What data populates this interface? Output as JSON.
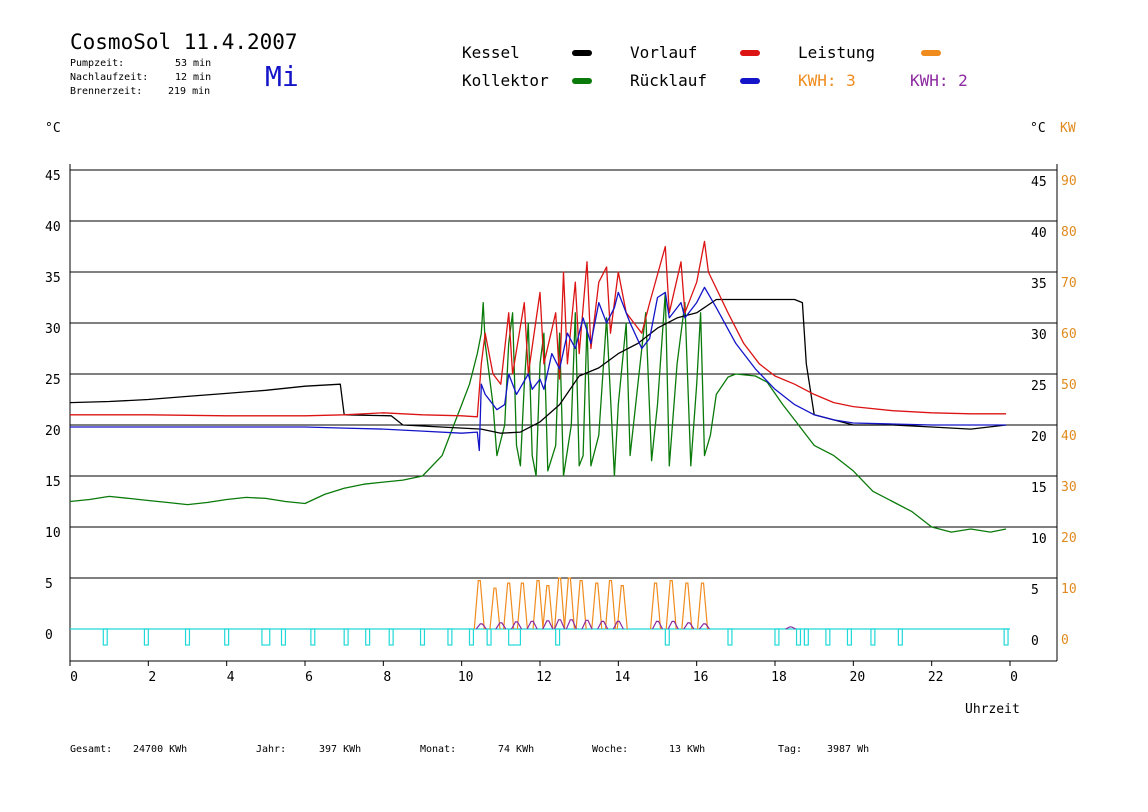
{
  "header": {
    "title": "CosmoSol 11.4.2007",
    "day": "Mi",
    "pumpzeit_label": "Pumpzeit:",
    "pumpzeit_value": "53 min",
    "nachlaufzeit_label": "Nachlaufzeit:",
    "nachlaufzeit_value": "12 min",
    "brennerzeit_label": "Brennerzeit:",
    "brennerzeit_value": "219 min"
  },
  "legend": {
    "kessel": "Kessel",
    "kollektor": "Kollektor",
    "vorlauf": "Vorlauf",
    "ruecklauf": "Rücklauf",
    "leistung": "Leistung",
    "kwh1": "KWH: 3",
    "kwh2": "KWH: 2"
  },
  "colors": {
    "kessel": "#000000",
    "kollektor": "#0a7a0a",
    "vorlauf": "#dc1414",
    "ruecklauf": "#1414c8",
    "leistung": "#f08c1e",
    "kwh2": "#8c2aa0",
    "pump": "#20d8d8",
    "orange_axis": "#e08a1e"
  },
  "axes": {
    "left_unit": "°C",
    "right_unit": "°C",
    "right_unit2": "KW",
    "xlabel": "Uhrzeit"
  },
  "footer": {
    "gesamt_label": "Gesamt:",
    "gesamt_value": "24700 KWh",
    "jahr_label": "Jahr:",
    "jahr_value": "397 KWh",
    "monat_label": "Monat:",
    "monat_value": "74 KWh",
    "woche_label": "Woche:",
    "woche_value": "13 KWh",
    "tag_label": "Tag:",
    "tag_value": "3987 Wh"
  },
  "chart_data": {
    "type": "line",
    "title": "CosmoSol 11.4.2007",
    "xlabel": "Uhrzeit",
    "ylabel": "°C",
    "xlim": [
      0,
      24
    ],
    "ylim": [
      0,
      45
    ],
    "y2lim": [
      0,
      90
    ],
    "grid": true,
    "legend_position": "top",
    "x_ticks": [
      "0",
      "2",
      "4",
      "6",
      "8",
      "10",
      "12",
      "14",
      "16",
      "18",
      "20",
      "22",
      "0"
    ],
    "y_ticks": [
      0,
      5,
      10,
      15,
      20,
      25,
      30,
      35,
      40,
      45
    ],
    "y2_ticks": [
      0,
      10,
      20,
      30,
      40,
      50,
      60,
      70,
      80,
      90
    ],
    "series": [
      {
        "name": "Kessel",
        "color": "#000000",
        "points": [
          [
            0,
            22.2
          ],
          [
            1,
            22.3
          ],
          [
            2,
            22.5
          ],
          [
            3,
            22.8
          ],
          [
            4,
            23.1
          ],
          [
            5,
            23.4
          ],
          [
            6,
            23.8
          ],
          [
            6.9,
            24.0
          ],
          [
            7.0,
            21.0
          ],
          [
            8.2,
            20.9
          ],
          [
            8.5,
            20.0
          ],
          [
            10.5,
            19.6
          ],
          [
            11.0,
            19.2
          ],
          [
            11.5,
            19.3
          ],
          [
            12.0,
            20.3
          ],
          [
            12.5,
            22.0
          ],
          [
            13.0,
            24.8
          ],
          [
            13.5,
            25.6
          ],
          [
            14.0,
            27.0
          ],
          [
            14.5,
            28.0
          ],
          [
            15.0,
            29.5
          ],
          [
            15.5,
            30.5
          ],
          [
            16.0,
            31.0
          ],
          [
            16.5,
            32.3
          ],
          [
            17.0,
            32.3
          ],
          [
            17.5,
            32.3
          ],
          [
            18.0,
            32.3
          ],
          [
            18.5,
            32.3
          ],
          [
            18.7,
            32.0
          ],
          [
            18.8,
            26.0
          ],
          [
            19.0,
            21.0
          ],
          [
            20,
            20.0
          ],
          [
            21,
            20.0
          ],
          [
            22,
            19.8
          ],
          [
            23,
            19.6
          ],
          [
            23.9,
            20.0
          ]
        ]
      },
      {
        "name": "Kollektor",
        "color": "#0a7a0a",
        "points": [
          [
            0,
            12.5
          ],
          [
            0.5,
            12.7
          ],
          [
            1,
            13.0
          ],
          [
            1.5,
            12.8
          ],
          [
            2,
            12.6
          ],
          [
            2.5,
            12.4
          ],
          [
            3,
            12.2
          ],
          [
            3.5,
            12.4
          ],
          [
            4,
            12.7
          ],
          [
            4.5,
            12.9
          ],
          [
            5,
            12.8
          ],
          [
            5.5,
            12.5
          ],
          [
            6,
            12.3
          ],
          [
            6.5,
            13.2
          ],
          [
            7,
            13.8
          ],
          [
            7.5,
            14.2
          ],
          [
            8,
            14.4
          ],
          [
            8.5,
            14.6
          ],
          [
            9,
            15.0
          ],
          [
            9.5,
            17.0
          ],
          [
            9.8,
            20.0
          ],
          [
            10,
            22.0
          ],
          [
            10.2,
            24.0
          ],
          [
            10.4,
            27.0
          ],
          [
            10.5,
            29.0
          ],
          [
            10.55,
            32.0
          ],
          [
            10.6,
            28.0
          ],
          [
            10.8,
            22.0
          ],
          [
            10.9,
            17.0
          ],
          [
            11.1,
            20.0
          ],
          [
            11.2,
            28.0
          ],
          [
            11.3,
            31.0
          ],
          [
            11.4,
            18.0
          ],
          [
            11.5,
            16.0
          ],
          [
            11.6,
            24.0
          ],
          [
            11.7,
            30.0
          ],
          [
            11.8,
            17.0
          ],
          [
            11.9,
            15.0
          ],
          [
            12.0,
            26.0
          ],
          [
            12.1,
            29.0
          ],
          [
            12.2,
            15.5
          ],
          [
            12.4,
            18.0
          ],
          [
            12.5,
            29.0
          ],
          [
            12.6,
            15.0
          ],
          [
            12.8,
            20.0
          ],
          [
            12.9,
            31.0
          ],
          [
            13.0,
            16.0
          ],
          [
            13.1,
            17.0
          ],
          [
            13.2,
            30.0
          ],
          [
            13.3,
            16.0
          ],
          [
            13.5,
            19.0
          ],
          [
            13.7,
            30.5
          ],
          [
            13.9,
            15.0
          ],
          [
            14.0,
            22.0
          ],
          [
            14.2,
            30.0
          ],
          [
            14.3,
            17.0
          ],
          [
            14.5,
            24.0
          ],
          [
            14.7,
            31.0
          ],
          [
            14.85,
            16.5
          ],
          [
            15.0,
            22.0
          ],
          [
            15.2,
            33.0
          ],
          [
            15.3,
            16.0
          ],
          [
            15.5,
            26.0
          ],
          [
            15.7,
            32.0
          ],
          [
            15.85,
            16.0
          ],
          [
            16.0,
            24.0
          ],
          [
            16.1,
            31.0
          ],
          [
            16.2,
            17.0
          ],
          [
            16.35,
            19.0
          ],
          [
            16.5,
            23.0
          ],
          [
            16.8,
            24.7
          ],
          [
            17.0,
            25.0
          ],
          [
            17.5,
            24.8
          ],
          [
            17.8,
            24.2
          ],
          [
            18.2,
            22.0
          ],
          [
            18.5,
            20.5
          ],
          [
            19.0,
            18.0
          ],
          [
            19.5,
            17.0
          ],
          [
            20.0,
            15.5
          ],
          [
            20.5,
            13.5
          ],
          [
            21,
            12.5
          ],
          [
            21.5,
            11.5
          ],
          [
            22,
            10.0
          ],
          [
            22.5,
            9.5
          ],
          [
            23,
            9.8
          ],
          [
            23.5,
            9.5
          ],
          [
            23.9,
            9.8
          ]
        ]
      },
      {
        "name": "Vorlauf",
        "color": "#dc1414",
        "points": [
          [
            0,
            21.0
          ],
          [
            2,
            21.0
          ],
          [
            4,
            20.9
          ],
          [
            6,
            20.9
          ],
          [
            7,
            21.0
          ],
          [
            8,
            21.2
          ],
          [
            9,
            21.0
          ],
          [
            10,
            20.9
          ],
          [
            10.4,
            20.8
          ],
          [
            10.5,
            26.0
          ],
          [
            10.6,
            29.0
          ],
          [
            10.8,
            25.0
          ],
          [
            11.0,
            24.0
          ],
          [
            11.2,
            31.0
          ],
          [
            11.3,
            25.0
          ],
          [
            11.6,
            32.0
          ],
          [
            11.7,
            25.0
          ],
          [
            12.0,
            33.0
          ],
          [
            12.1,
            26.0
          ],
          [
            12.4,
            31.0
          ],
          [
            12.5,
            24.5
          ],
          [
            12.6,
            35.0
          ],
          [
            12.7,
            26.0
          ],
          [
            12.9,
            34.0
          ],
          [
            13.0,
            27.0
          ],
          [
            13.2,
            36.0
          ],
          [
            13.3,
            27.5
          ],
          [
            13.5,
            34.0
          ],
          [
            13.7,
            35.5
          ],
          [
            13.8,
            29.0
          ],
          [
            14.0,
            35.0
          ],
          [
            14.2,
            31.0
          ],
          [
            14.6,
            29.0
          ],
          [
            14.8,
            32.0
          ],
          [
            15.2,
            37.5
          ],
          [
            15.3,
            31.0
          ],
          [
            15.6,
            36.0
          ],
          [
            15.7,
            31.0
          ],
          [
            16.0,
            34.0
          ],
          [
            16.2,
            38.0
          ],
          [
            16.3,
            35.0
          ],
          [
            16.8,
            31.0
          ],
          [
            17.2,
            28.0
          ],
          [
            17.6,
            26.0
          ],
          [
            18.0,
            24.8
          ],
          [
            18.5,
            24.0
          ],
          [
            19.0,
            23.0
          ],
          [
            19.5,
            22.2
          ],
          [
            20,
            21.8
          ],
          [
            21,
            21.4
          ],
          [
            22,
            21.2
          ],
          [
            23,
            21.1
          ],
          [
            23.9,
            21.1
          ]
        ]
      },
      {
        "name": "Rücklauf",
        "color": "#1414c8",
        "points": [
          [
            0,
            19.8
          ],
          [
            2,
            19.8
          ],
          [
            4,
            19.8
          ],
          [
            6,
            19.8
          ],
          [
            7,
            19.7
          ],
          [
            8,
            19.6
          ],
          [
            9,
            19.4
          ],
          [
            10,
            19.2
          ],
          [
            10.4,
            19.3
          ],
          [
            10.45,
            17.5
          ],
          [
            10.5,
            24.0
          ],
          [
            10.6,
            23.0
          ],
          [
            10.9,
            21.5
          ],
          [
            11.1,
            22.0
          ],
          [
            11.2,
            25.0
          ],
          [
            11.4,
            23.0
          ],
          [
            11.7,
            25.0
          ],
          [
            11.8,
            23.5
          ],
          [
            12.0,
            24.5
          ],
          [
            12.1,
            23.5
          ],
          [
            12.3,
            27.0
          ],
          [
            12.5,
            25.5
          ],
          [
            12.7,
            29.0
          ],
          [
            12.9,
            27.5
          ],
          [
            13.1,
            30.5
          ],
          [
            13.3,
            28.0
          ],
          [
            13.5,
            32.0
          ],
          [
            13.7,
            30.0
          ],
          [
            13.9,
            31.5
          ],
          [
            14.0,
            33.0
          ],
          [
            14.3,
            30.0
          ],
          [
            14.6,
            27.5
          ],
          [
            14.8,
            28.5
          ],
          [
            15.0,
            32.5
          ],
          [
            15.2,
            33.0
          ],
          [
            15.3,
            30.5
          ],
          [
            15.6,
            32.0
          ],
          [
            15.7,
            30.5
          ],
          [
            16.0,
            32.0
          ],
          [
            16.2,
            33.5
          ],
          [
            16.5,
            31.5
          ],
          [
            17.0,
            28.0
          ],
          [
            17.5,
            25.5
          ],
          [
            18.0,
            23.5
          ],
          [
            18.5,
            22.0
          ],
          [
            19.0,
            21.0
          ],
          [
            19.5,
            20.5
          ],
          [
            20,
            20.2
          ],
          [
            21,
            20.1
          ],
          [
            22,
            20.0
          ],
          [
            23,
            20.0
          ],
          [
            23.9,
            20.0
          ]
        ]
      },
      {
        "name": "Leistung",
        "color": "#f08c1e",
        "axis": "right",
        "peaks": [
          [
            10.45,
            9.5
          ],
          [
            10.85,
            8.0
          ],
          [
            11.2,
            9.0
          ],
          [
            11.55,
            9.0
          ],
          [
            11.95,
            9.5
          ],
          [
            12.2,
            8.5
          ],
          [
            12.5,
            10.0
          ],
          [
            12.75,
            10.0
          ],
          [
            13.05,
            9.5
          ],
          [
            13.45,
            9.0
          ],
          [
            13.8,
            9.5
          ],
          [
            14.1,
            8.5
          ],
          [
            14.95,
            9.0
          ],
          [
            15.35,
            9.5
          ],
          [
            15.75,
            9.0
          ],
          [
            16.15,
            9.0
          ]
        ]
      },
      {
        "name": "KWH 2",
        "color": "#8c2aa0",
        "axis": "right",
        "peaks": [
          [
            10.5,
            1.0
          ],
          [
            11.0,
            1.2
          ],
          [
            11.4,
            1.4
          ],
          [
            11.8,
            1.5
          ],
          [
            12.2,
            1.6
          ],
          [
            12.5,
            1.8
          ],
          [
            12.8,
            1.8
          ],
          [
            13.2,
            1.7
          ],
          [
            13.6,
            1.5
          ],
          [
            14.0,
            1.5
          ],
          [
            15.0,
            1.5
          ],
          [
            15.4,
            1.5
          ],
          [
            15.8,
            1.2
          ],
          [
            16.2,
            1.0
          ],
          [
            18.4,
            0.4
          ]
        ]
      },
      {
        "name": "Pumpe",
        "color": "#20d8d8",
        "pulses": [
          [
            0.85,
            0.95
          ],
          [
            1.9,
            2.0
          ],
          [
            2.95,
            3.05
          ],
          [
            3.95,
            4.05
          ],
          [
            4.9,
            5.1
          ],
          [
            5.4,
            5.5
          ],
          [
            6.15,
            6.25
          ],
          [
            7.0,
            7.1
          ],
          [
            7.55,
            7.65
          ],
          [
            8.15,
            8.25
          ],
          [
            8.95,
            9.05
          ],
          [
            9.65,
            9.75
          ],
          [
            10.2,
            10.3
          ],
          [
            10.65,
            10.75
          ],
          [
            11.2,
            11.5
          ],
          [
            12.4,
            12.5
          ],
          [
            15.2,
            15.3
          ],
          [
            16.8,
            16.9
          ],
          [
            18.0,
            18.1
          ],
          [
            18.55,
            18.65
          ],
          [
            18.75,
            18.85
          ],
          [
            19.3,
            19.4
          ],
          [
            19.85,
            19.95
          ],
          [
            20.45,
            20.55
          ],
          [
            21.15,
            21.25
          ],
          [
            23.85,
            23.95
          ]
        ]
      }
    ]
  }
}
